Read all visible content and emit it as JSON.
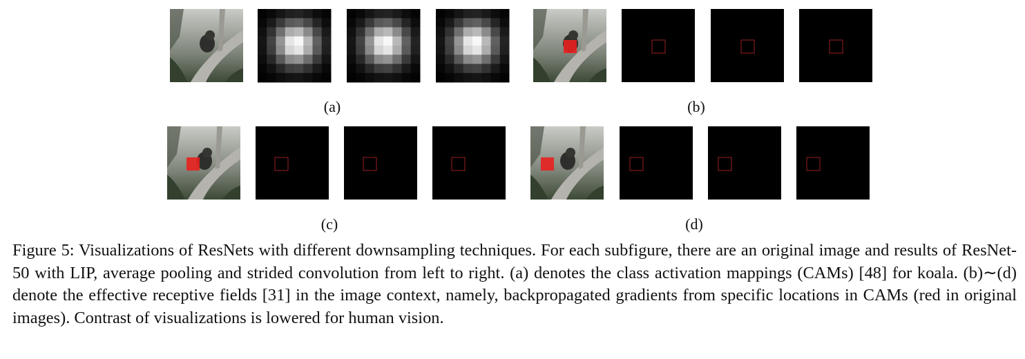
{
  "subfigures": [
    {
      "label": "(a)"
    },
    {
      "label": "(b)"
    },
    {
      "label": "(c)"
    },
    {
      "label": "(d)"
    }
  ],
  "caption": "Figure 5: Visualizations of ResNets with different downsampling techniques. For each subfigure, there are an original image and results of ResNet-50 with LIP, average pooling and strided convolution from left to right. (a) denotes the class activation mappings (CAMs) [48] for koala. (b)∼(d) denote the effective receptive fields [31] in the image context, namely, backpropagated gradients from specific locations in CAMs (red in original images). Contrast of visualizations is lowered for human vision."
}
